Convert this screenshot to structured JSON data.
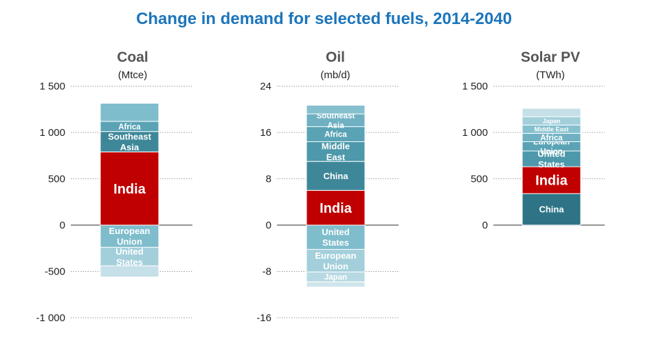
{
  "title": "Change in demand for selected fuels, 2014-2040",
  "colors": {
    "title": "#1b75bc",
    "grid": "#9a9a9a",
    "axis": "#555555"
  },
  "chart_data": [
    {
      "type": "bar",
      "subtype": "stacked-waterfall",
      "title": "Coal",
      "unit": "(Mtce)",
      "ylim": [
        -1000,
        1500
      ],
      "yticks": [
        1500,
        1000,
        500,
        0,
        -500,
        -1000
      ],
      "ytick_labels": [
        "1 500",
        "1 000",
        "500",
        "0",
        "-500",
        "-1 000"
      ],
      "positive": [
        {
          "name": "India",
          "value": 790,
          "color": "#c00000",
          "label": "India",
          "size": "big"
        },
        {
          "name": "Southeast Asia",
          "value": 220,
          "color": "#3e8799",
          "label": "Southeast Asia",
          "size": "mid"
        },
        {
          "name": "Africa",
          "value": 110,
          "color": "#5aa3b5",
          "label": "Africa",
          "size": "small"
        },
        {
          "name": "Other",
          "value": 195,
          "color": "#7fbdcc",
          "label": "",
          "size": "small"
        }
      ],
      "negative": [
        {
          "name": "European Union",
          "value": -240,
          "color": "#7fbdcc",
          "label": "European Union",
          "size": "mid"
        },
        {
          "name": "United States",
          "value": -200,
          "color": "#a3cfdb",
          "label": "United States",
          "size": "mid"
        },
        {
          "name": "Other",
          "value": -120,
          "color": "#c5e0e8",
          "label": "",
          "size": "small"
        }
      ]
    },
    {
      "type": "bar",
      "subtype": "stacked-waterfall",
      "title": "Oil",
      "unit": "(mb/d)",
      "ylim": [
        -16,
        24
      ],
      "yticks": [
        24,
        16,
        8,
        0,
        -8,
        -16
      ],
      "ytick_labels": [
        "24",
        "16",
        "8",
        "0",
        "-8",
        "-16"
      ],
      "positive": [
        {
          "name": "India",
          "value": 6,
          "color": "#c00000",
          "label": "India",
          "size": "big"
        },
        {
          "name": "China",
          "value": 5,
          "color": "#3e8799",
          "label": "China",
          "size": "mid"
        },
        {
          "name": "Middle East",
          "value": 3.4,
          "color": "#4d98aa",
          "label": "Middle East",
          "size": "mid"
        },
        {
          "name": "Africa",
          "value": 2.6,
          "color": "#5aa3b5",
          "label": "Africa",
          "size": "small"
        },
        {
          "name": "Southeast Asia",
          "value": 2.2,
          "color": "#6fb1c2",
          "label": "Southeast Asia",
          "size": "small"
        },
        {
          "name": "Other",
          "value": 1.5,
          "color": "#85c0ce",
          "label": "",
          "size": "small"
        }
      ],
      "negative": [
        {
          "name": "United States",
          "value": -4.2,
          "color": "#7fbdcc",
          "label": "United States",
          "size": "mid"
        },
        {
          "name": "European Union",
          "value": -3.9,
          "color": "#a3cfdb",
          "label": "European Union",
          "size": "mid"
        },
        {
          "name": "Japan",
          "value": -1.7,
          "color": "#b7d9e3",
          "label": "Japan",
          "size": "small"
        },
        {
          "name": "Other",
          "value": -0.9,
          "color": "#cfe5ec",
          "label": "",
          "size": "small"
        }
      ]
    },
    {
      "type": "bar",
      "subtype": "stacked-waterfall",
      "title": "Solar PV",
      "unit": "(TWh)",
      "ylim": [
        0,
        1500
      ],
      "yticks": [
        1500,
        1000,
        500,
        0
      ],
      "ytick_labels": [
        "1 500",
        "1 000",
        "500",
        "0"
      ],
      "positive": [
        {
          "name": "China",
          "value": 340,
          "color": "#2f7486",
          "label": "China",
          "size": "mid"
        },
        {
          "name": "India",
          "value": 290,
          "color": "#c00000",
          "label": "India",
          "size": "big"
        },
        {
          "name": "United States",
          "value": 170,
          "color": "#4d98aa",
          "label": "United States",
          "size": "mid"
        },
        {
          "name": "European Union",
          "value": 100,
          "color": "#5aa3b5",
          "label": "European Union",
          "size": "small"
        },
        {
          "name": "Africa",
          "value": 90,
          "color": "#6fb1c2",
          "label": "Africa",
          "size": "small"
        },
        {
          "name": "Middle East",
          "value": 90,
          "color": "#85c0ce",
          "label": "Middle East",
          "size": "tiny"
        },
        {
          "name": "Japan",
          "value": 90,
          "color": "#a3cfdb",
          "label": "Japan",
          "size": "tiny"
        },
        {
          "name": "Other",
          "value": 90,
          "color": "#c5e0e8",
          "label": "",
          "size": "tiny"
        }
      ],
      "negative": []
    }
  ]
}
